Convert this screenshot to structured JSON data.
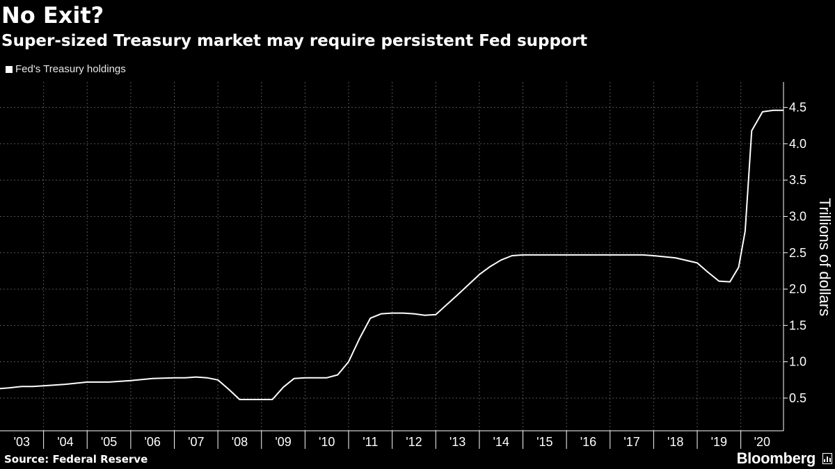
{
  "title": "No Exit?",
  "subtitle": "Super-sized Treasury market may require persistent Fed support",
  "source": "Source: Federal Reserve",
  "brand": "Bloomberg",
  "colors": {
    "background": "#000000",
    "line": "#ffffff",
    "grid": "#555555",
    "text": "#ffffff"
  },
  "chart_data": {
    "type": "line",
    "title": "No Exit?",
    "subtitle": "Super-sized Treasury market may require persistent Fed support",
    "xlabel": "",
    "ylabel": "Trillions of dollars",
    "ylim": [
      0.05,
      4.85
    ],
    "xlim": [
      2003.0,
      2020.98
    ],
    "yticks": [
      0.5,
      1.0,
      1.5,
      2.0,
      2.5,
      3.0,
      3.5,
      4.0,
      4.5
    ],
    "ytick_labels": [
      "0.5",
      "1.0",
      "1.5",
      "2.0",
      "2.5",
      "3.0",
      "3.5",
      "4.0",
      "4.5"
    ],
    "xticks": [
      2003,
      2004,
      2005,
      2006,
      2007,
      2008,
      2009,
      2010,
      2011,
      2012,
      2013,
      2014,
      2015,
      2016,
      2017,
      2018,
      2019,
      2020
    ],
    "xtick_labels": [
      "'03",
      "'04",
      "'05",
      "'06",
      "'07",
      "'08",
      "'09",
      "'10",
      "'11",
      "'12",
      "'13",
      "'14",
      "'15",
      "'16",
      "'17",
      "'18",
      "'19",
      "'20"
    ],
    "grid": true,
    "legend_position": "top-left",
    "series": [
      {
        "name": "Fed's Treasury holdings",
        "color": "#ffffff",
        "x": [
          2003.0,
          2003.2,
          2003.5,
          2003.75,
          2004.0,
          2004.5,
          2005.0,
          2005.5,
          2006.0,
          2006.5,
          2007.0,
          2007.25,
          2007.5,
          2007.75,
          2008.0,
          2008.25,
          2008.5,
          2008.75,
          2009.0,
          2009.25,
          2009.5,
          2009.75,
          2010.0,
          2010.25,
          2010.5,
          2010.75,
          2011.0,
          2011.25,
          2011.5,
          2011.75,
          2012.0,
          2012.25,
          2012.5,
          2012.75,
          2013.0,
          2013.5,
          2014.0,
          2014.25,
          2014.5,
          2014.75,
          2015.0,
          2015.5,
          2016.0,
          2016.5,
          2017.0,
          2017.25,
          2017.5,
          2017.75,
          2018.0,
          2018.5,
          2019.0,
          2019.25,
          2019.5,
          2019.75,
          2019.95,
          2020.1,
          2020.25,
          2020.5,
          2020.75,
          2020.98
        ],
        "y": [
          0.63,
          0.64,
          0.66,
          0.66,
          0.67,
          0.69,
          0.72,
          0.72,
          0.74,
          0.77,
          0.78,
          0.78,
          0.79,
          0.78,
          0.75,
          0.62,
          0.48,
          0.48,
          0.48,
          0.48,
          0.65,
          0.77,
          0.78,
          0.78,
          0.78,
          0.82,
          1.0,
          1.32,
          1.6,
          1.66,
          1.67,
          1.67,
          1.66,
          1.64,
          1.65,
          1.92,
          2.2,
          2.31,
          2.4,
          2.46,
          2.47,
          2.47,
          2.47,
          2.47,
          2.47,
          2.47,
          2.47,
          2.47,
          2.46,
          2.43,
          2.36,
          2.23,
          2.11,
          2.1,
          2.3,
          2.8,
          4.18,
          4.44,
          4.46,
          4.46
        ]
      }
    ]
  }
}
